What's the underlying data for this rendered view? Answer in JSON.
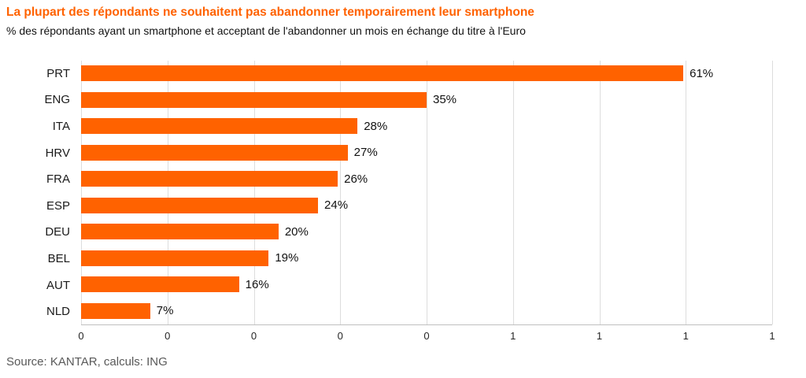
{
  "header": {
    "title": "La plupart des répondants ne souhaitent pas abandonner temporairement leur smartphone",
    "subtitle": "% des répondants ayant un smartphone et acceptant de l'abandonner un mois en échange du titre à l'Euro"
  },
  "chart_data": {
    "type": "bar",
    "orientation": "horizontal",
    "title": "La plupart des répondants ne souhaitent pas abandonner temporairement leur smartphone",
    "subtitle": "% des répondants ayant un smartphone et acceptant de l'abandonner un mois en échange du titre à l'Euro",
    "categories": [
      "PRT",
      "ENG",
      "ITA",
      "HRV",
      "FRA",
      "ESP",
      "DEU",
      "BEL",
      "AUT",
      "NLD"
    ],
    "values": [
      61,
      35,
      28,
      27,
      26,
      24,
      20,
      19,
      16,
      7
    ],
    "value_labels": [
      "61%",
      "35%",
      "28%",
      "27%",
      "26%",
      "24%",
      "20%",
      "19%",
      "16%",
      "7%"
    ],
    "xlabel": "",
    "ylabel": "",
    "xlim": [
      0,
      70
    ],
    "x_tick_labels": [
      "0",
      "0",
      "0",
      "0",
      "0",
      "1",
      "1",
      "1",
      "1"
    ],
    "grid": true,
    "legend": "none",
    "bar_color": "#FF6200"
  },
  "footer": {
    "source": "Source: KANTAR, calculs: ING"
  },
  "colors": {
    "accent": "#FF6200",
    "title": "#FF6200",
    "grid": "#DDDDDD",
    "axis": "#BFBFBF",
    "source_text": "#595959"
  }
}
